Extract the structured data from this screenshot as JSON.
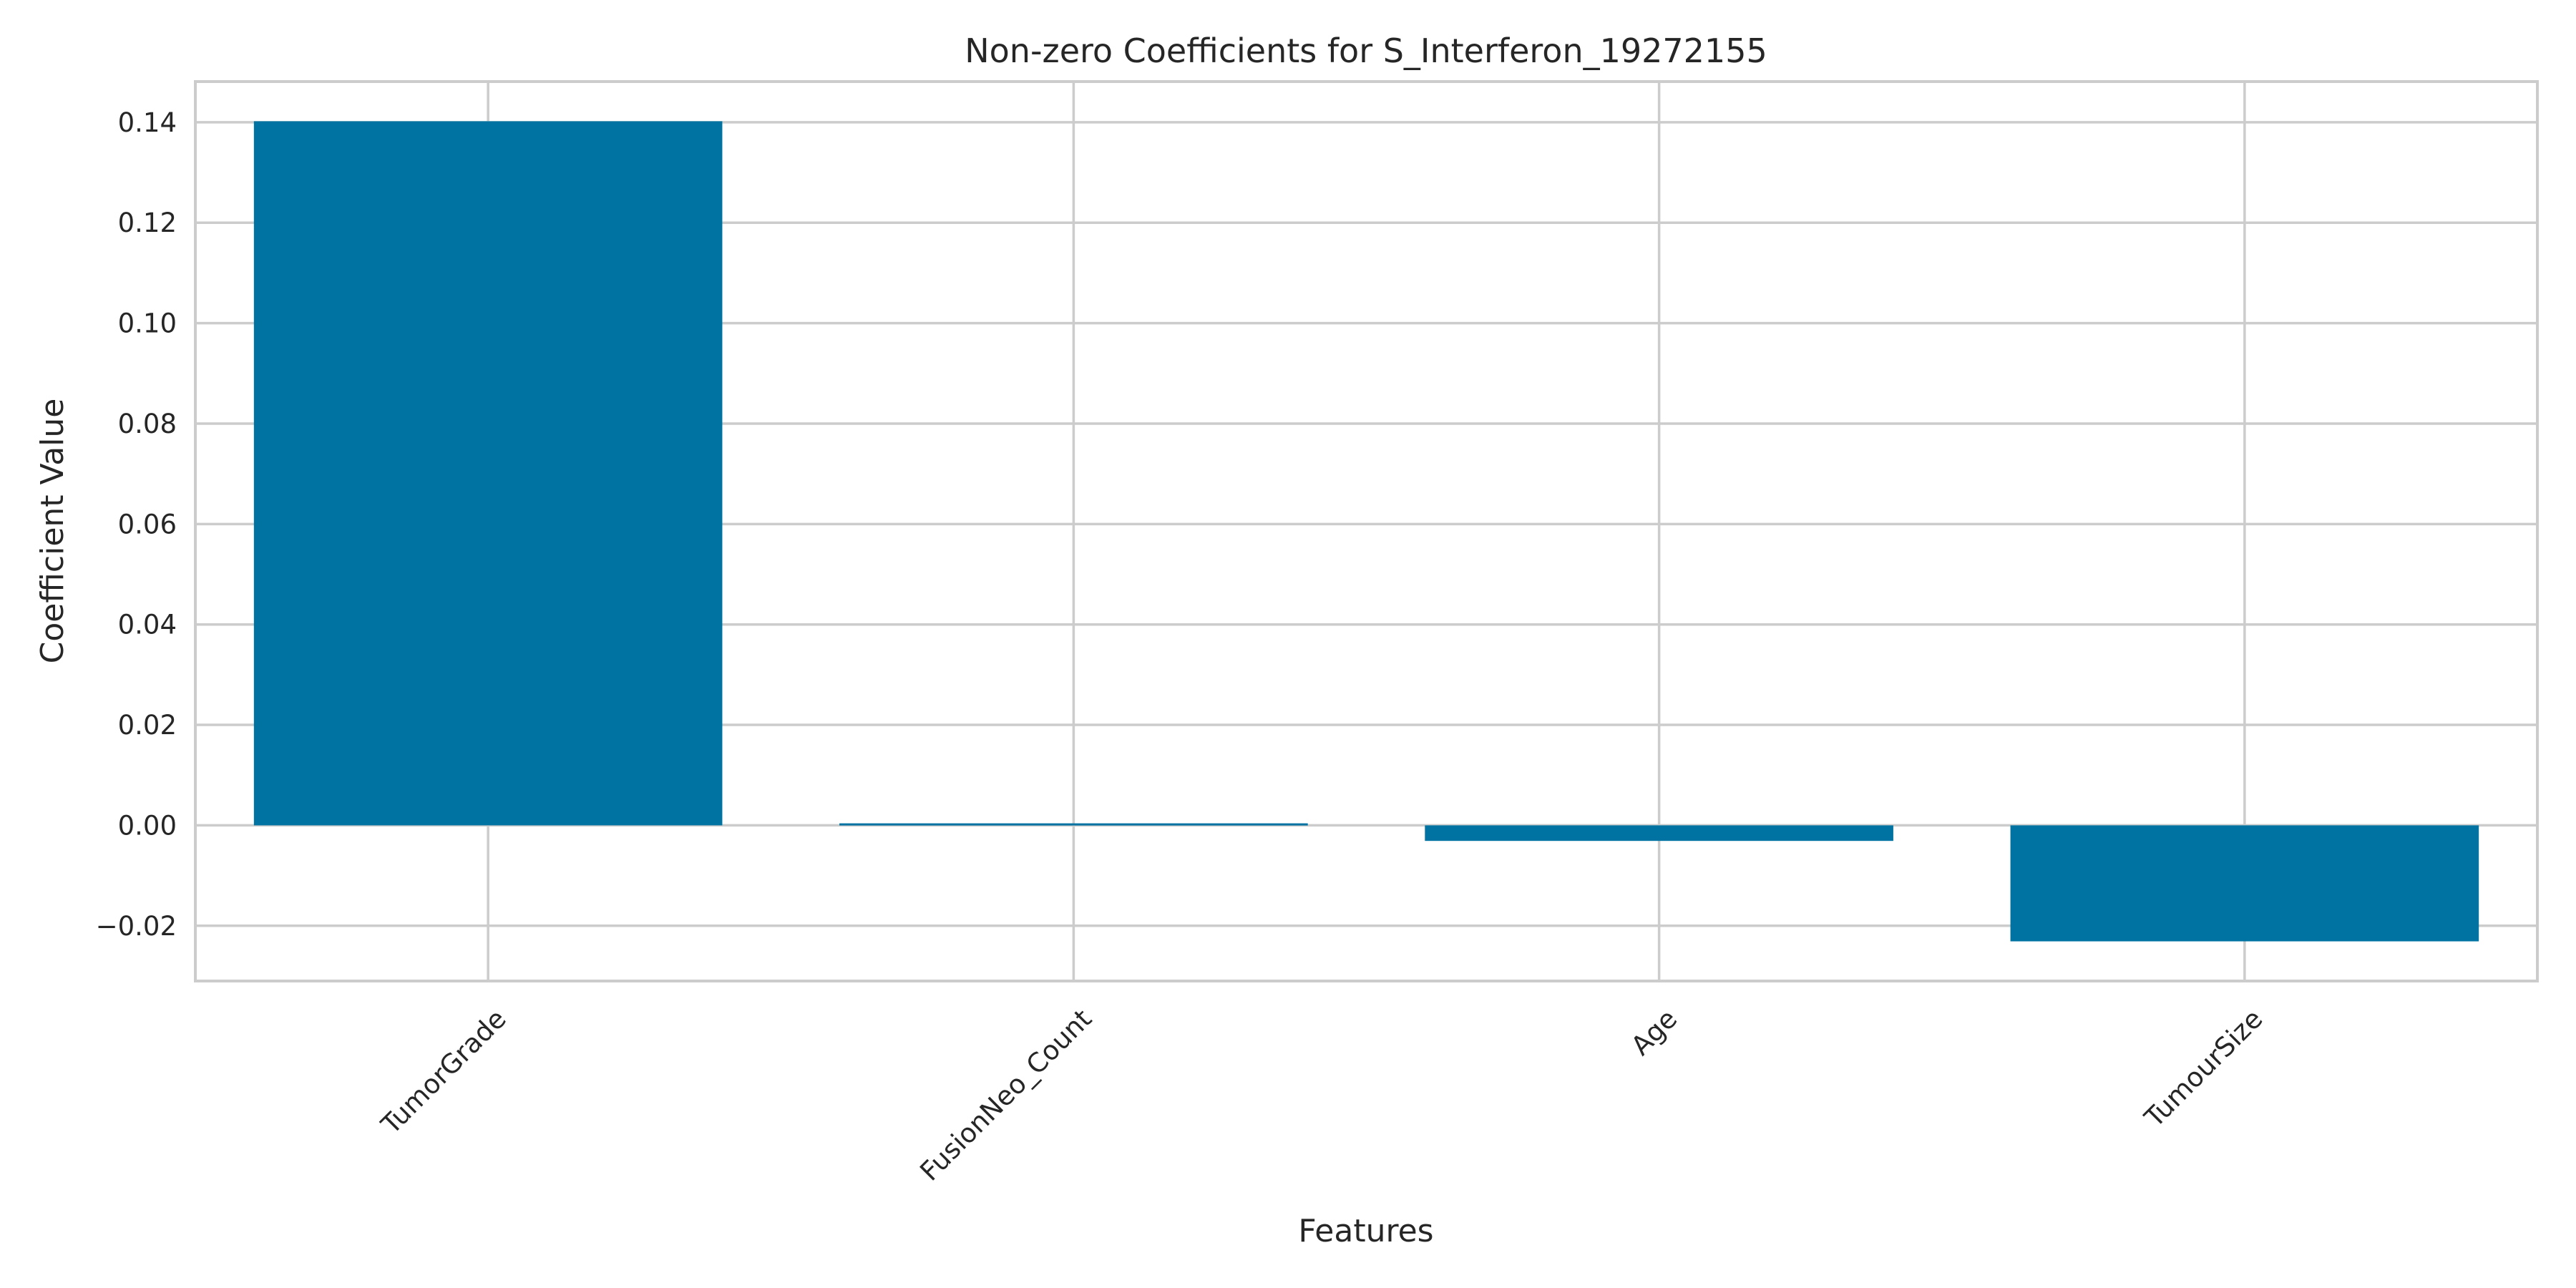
{
  "chart_data": {
    "type": "bar",
    "title": "Non-zero Coefficients for S_Interferon_19272155",
    "xlabel": "Features",
    "ylabel": "Coefficient Value",
    "categories": [
      "TumorGrade",
      "FusionNeo_Count",
      "Age",
      "TumourSize"
    ],
    "values": [
      0.1402,
      0.0004,
      -0.0031,
      -0.0231
    ],
    "ylim": [
      -0.031,
      0.1481
    ],
    "yticks": [
      -0.02,
      0.0,
      0.02,
      0.04,
      0.06,
      0.08,
      0.1,
      0.12,
      0.14
    ],
    "ytick_labels": [
      "−0.02",
      "0.00",
      "0.02",
      "0.04",
      "0.06",
      "0.08",
      "0.10",
      "0.12",
      "0.14"
    ],
    "grid": true,
    "bar_color": "#0173a3",
    "grid_color": "#cccccc"
  }
}
